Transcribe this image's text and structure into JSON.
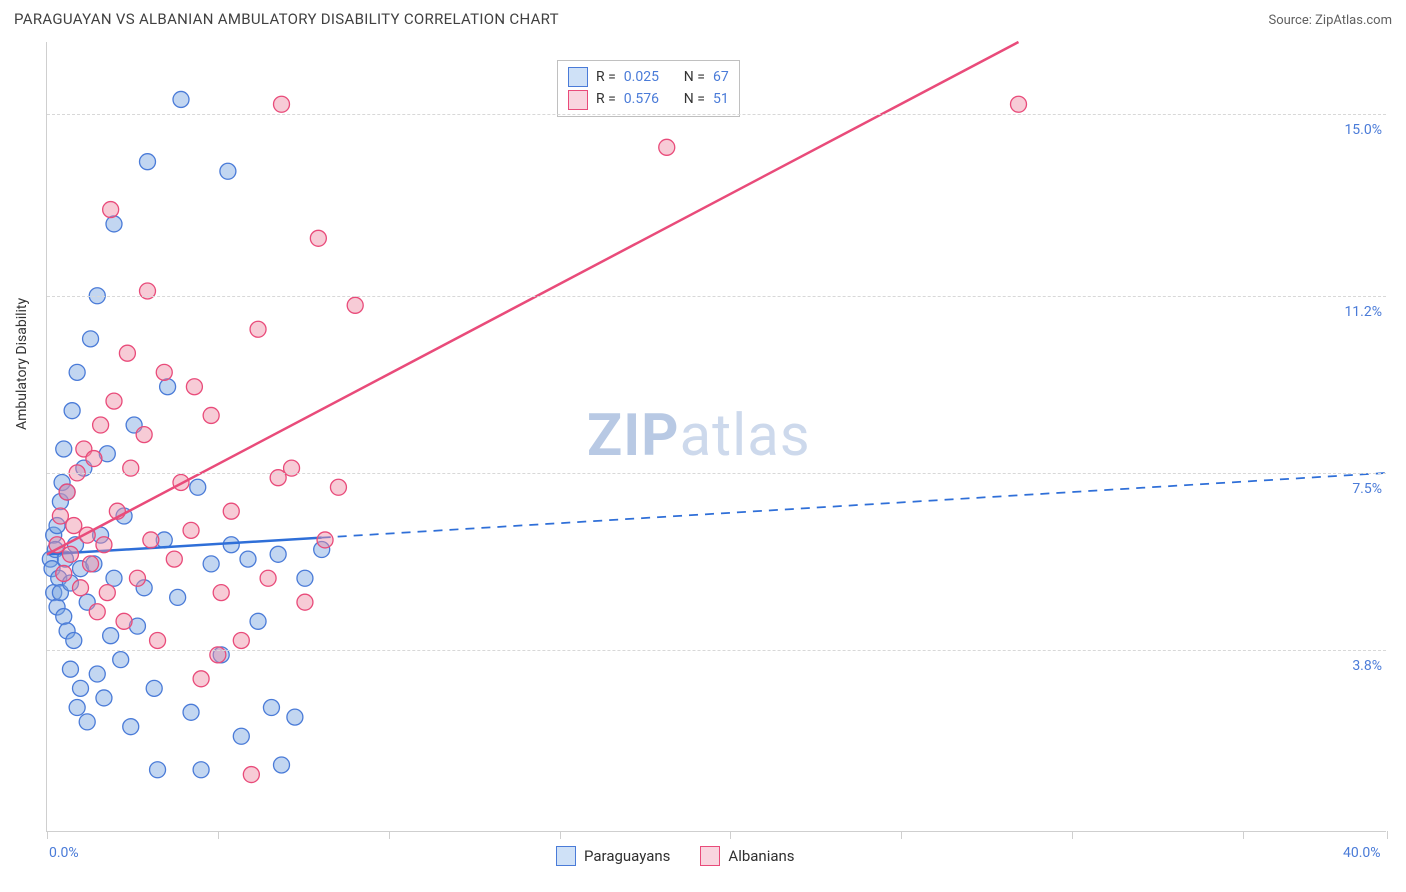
{
  "header": {
    "title": "PARAGUAYAN VS ALBANIAN AMBULATORY DISABILITY CORRELATION CHART",
    "source": "Source: ZipAtlas.com"
  },
  "watermark": {
    "bold": "ZIP",
    "light": "atlas"
  },
  "chart": {
    "type": "scatter",
    "y_axis_title": "Ambulatory Disability",
    "background_color": "#ffffff",
    "grid_color": "#d8d8d8",
    "axis_color": "#cfcfcf",
    "xlim": [
      0,
      40
    ],
    "ylim": [
      0,
      16.5
    ],
    "x_labels": [
      {
        "value": 0,
        "text": "0.0%"
      },
      {
        "value": 40,
        "text": "40.0%"
      }
    ],
    "x_ticks": [
      0,
      5.1,
      10.2,
      15.3,
      20.4,
      25.5,
      30.6,
      35.7,
      40
    ],
    "y_gridlines": [
      {
        "value": 3.8,
        "label": "3.8%"
      },
      {
        "value": 7.5,
        "label": "7.5%"
      },
      {
        "value": 11.2,
        "label": "11.2%"
      },
      {
        "value": 15.0,
        "label": "15.0%"
      }
    ],
    "stats_legend": {
      "rows": [
        {
          "swatch_fill": "#cfe1f7",
          "swatch_border": "#4a7bd8",
          "r": "0.025",
          "n": "67"
        },
        {
          "swatch_fill": "#f9d5df",
          "swatch_border": "#e94b7a",
          "r": "0.576",
          "n": "51"
        }
      ],
      "text_color": "#333333",
      "value_color": "#4a7bd8"
    },
    "bottom_legend": [
      {
        "swatch_fill": "#cfe1f7",
        "swatch_border": "#4a7bd8",
        "label": "Paraguayans"
      },
      {
        "swatch_fill": "#f9d5df",
        "swatch_border": "#e94b7a",
        "label": "Albanians"
      }
    ],
    "series": [
      {
        "name": "Paraguayans",
        "marker_fill": "rgba(120,165,225,0.45)",
        "marker_stroke": "#4a7bd8",
        "marker_radius": 8,
        "trend": {
          "color": "#2f6fd8",
          "width": 2.5,
          "solid_to_x": 8.2,
          "x1": 0,
          "y1": 5.8,
          "x2": 40,
          "y2": 7.5
        },
        "points": [
          [
            0.1,
            5.7
          ],
          [
            0.15,
            5.5
          ],
          [
            0.2,
            6.2
          ],
          [
            0.2,
            5.0
          ],
          [
            0.25,
            5.9
          ],
          [
            0.3,
            6.4
          ],
          [
            0.3,
            4.7
          ],
          [
            0.35,
            5.3
          ],
          [
            0.4,
            6.9
          ],
          [
            0.4,
            5.0
          ],
          [
            0.45,
            7.3
          ],
          [
            0.5,
            4.5
          ],
          [
            0.5,
            8.0
          ],
          [
            0.55,
            5.7
          ],
          [
            0.6,
            4.2
          ],
          [
            0.6,
            7.1
          ],
          [
            0.7,
            5.2
          ],
          [
            0.7,
            3.4
          ],
          [
            0.75,
            8.8
          ],
          [
            0.8,
            4.0
          ],
          [
            0.85,
            6.0
          ],
          [
            0.9,
            2.6
          ],
          [
            0.9,
            9.6
          ],
          [
            1.0,
            5.5
          ],
          [
            1.0,
            3.0
          ],
          [
            1.1,
            7.6
          ],
          [
            1.2,
            4.8
          ],
          [
            1.2,
            2.3
          ],
          [
            1.3,
            10.3
          ],
          [
            1.4,
            5.6
          ],
          [
            1.5,
            3.3
          ],
          [
            1.5,
            11.2
          ],
          [
            1.6,
            6.2
          ],
          [
            1.7,
            2.8
          ],
          [
            1.8,
            7.9
          ],
          [
            1.9,
            4.1
          ],
          [
            2.0,
            5.3
          ],
          [
            2.0,
            12.7
          ],
          [
            2.2,
            3.6
          ],
          [
            2.3,
            6.6
          ],
          [
            2.5,
            2.2
          ],
          [
            2.6,
            8.5
          ],
          [
            2.7,
            4.3
          ],
          [
            2.9,
            5.1
          ],
          [
            3.0,
            14.0
          ],
          [
            3.2,
            3.0
          ],
          [
            3.5,
            6.1
          ],
          [
            3.6,
            9.3
          ],
          [
            3.9,
            4.9
          ],
          [
            4.0,
            15.3
          ],
          [
            4.3,
            2.5
          ],
          [
            4.5,
            7.2
          ],
          [
            4.9,
            5.6
          ],
          [
            5.2,
            3.7
          ],
          [
            5.4,
            13.8
          ],
          [
            5.5,
            6.0
          ],
          [
            5.8,
            2.0
          ],
          [
            6.0,
            5.7
          ],
          [
            6.3,
            4.4
          ],
          [
            6.7,
            2.6
          ],
          [
            6.9,
            5.8
          ],
          [
            7.0,
            1.4
          ],
          [
            7.4,
            2.4
          ],
          [
            7.7,
            5.3
          ],
          [
            8.2,
            5.9
          ],
          [
            3.3,
            1.3
          ],
          [
            4.6,
            1.3
          ]
        ]
      },
      {
        "name": "Albanians",
        "marker_fill": "rgba(238,140,165,0.45)",
        "marker_stroke": "#e94b7a",
        "marker_radius": 8,
        "trend": {
          "color": "#e94b7a",
          "width": 2.5,
          "solid_to_x": 40,
          "x1": 0,
          "y1": 5.8,
          "x2": 29,
          "y2": 16.5
        },
        "points": [
          [
            0.3,
            6.0
          ],
          [
            0.4,
            6.6
          ],
          [
            0.5,
            5.4
          ],
          [
            0.6,
            7.1
          ],
          [
            0.7,
            5.8
          ],
          [
            0.8,
            6.4
          ],
          [
            0.9,
            7.5
          ],
          [
            1.0,
            5.1
          ],
          [
            1.1,
            8.0
          ],
          [
            1.2,
            6.2
          ],
          [
            1.3,
            5.6
          ],
          [
            1.4,
            7.8
          ],
          [
            1.5,
            4.6
          ],
          [
            1.6,
            8.5
          ],
          [
            1.7,
            6.0
          ],
          [
            1.8,
            5.0
          ],
          [
            2.0,
            9.0
          ],
          [
            2.1,
            6.7
          ],
          [
            2.3,
            4.4
          ],
          [
            2.5,
            7.6
          ],
          [
            2.7,
            5.3
          ],
          [
            2.9,
            8.3
          ],
          [
            3.1,
            6.1
          ],
          [
            3.3,
            4.0
          ],
          [
            3.5,
            9.6
          ],
          [
            3.8,
            5.7
          ],
          [
            4.0,
            7.3
          ],
          [
            4.3,
            6.3
          ],
          [
            4.6,
            3.2
          ],
          [
            4.9,
            8.7
          ],
          [
            5.2,
            5.0
          ],
          [
            5.5,
            6.7
          ],
          [
            5.8,
            4.0
          ],
          [
            6.1,
            1.2
          ],
          [
            6.3,
            10.5
          ],
          [
            6.6,
            5.3
          ],
          [
            7.0,
            15.2
          ],
          [
            7.3,
            7.6
          ],
          [
            7.7,
            4.8
          ],
          [
            8.1,
            12.4
          ],
          [
            8.3,
            6.1
          ],
          [
            8.7,
            7.2
          ],
          [
            9.2,
            11.0
          ],
          [
            6.9,
            7.4
          ],
          [
            5.1,
            3.7
          ],
          [
            4.4,
            9.3
          ],
          [
            3.0,
            11.3
          ],
          [
            2.4,
            10.0
          ],
          [
            18.5,
            14.3
          ],
          [
            29.0,
            15.2
          ],
          [
            1.9,
            13.0
          ]
        ]
      }
    ]
  }
}
